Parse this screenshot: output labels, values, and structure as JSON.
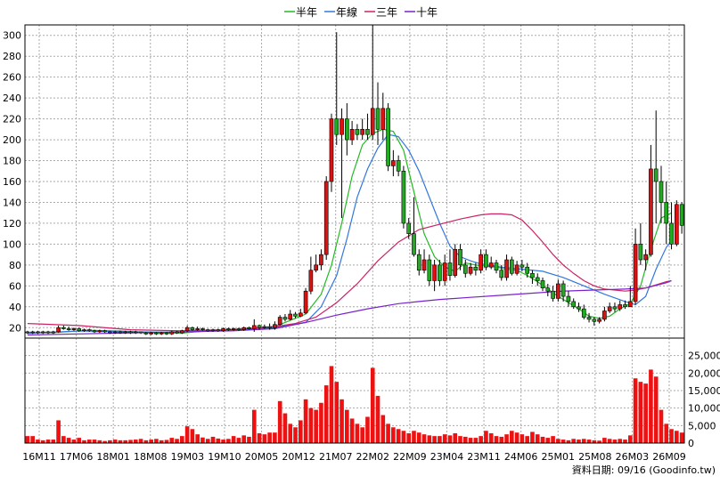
{
  "legend": [
    {
      "label": "半年",
      "color": "#22bb22"
    },
    {
      "label": "年線",
      "color": "#3377dd"
    },
    {
      "label": "三年",
      "color": "#cc2266"
    },
    {
      "label": "十年",
      "color": "#7722cc"
    }
  ],
  "source_label": "資料日期: 09/16  (Goodinfo.tw)",
  "colors": {
    "up": "#dd1111",
    "down": "#22aa22",
    "grid": "#aaaaaa",
    "volume": "#ee1111"
  },
  "chart_data": {
    "type": "candlestick_with_volume",
    "x_ticks": [
      "16M11",
      "17M06",
      "18M01",
      "18M08",
      "19M03",
      "19M10",
      "20M05",
      "20M12",
      "21M07",
      "22M02",
      "22M09",
      "23M04",
      "23M11",
      "24M06",
      "25M01",
      "25M08",
      "26M03",
      "26M09"
    ],
    "price_axis": {
      "ylim": [
        10,
        310
      ],
      "ticks": [
        20,
        40,
        60,
        80,
        100,
        120,
        140,
        160,
        180,
        200,
        220,
        240,
        260,
        280,
        300
      ]
    },
    "volume_axis": {
      "ylim": [
        0,
        30000
      ],
      "ticks": [
        0,
        5000,
        10000,
        15000,
        20000,
        25000
      ],
      "tick_labels": [
        "0",
        "5,000",
        "10,000",
        "15,000",
        "20,000",
        "25,000"
      ]
    },
    "candles": [
      [
        16,
        15,
        17,
        14
      ],
      [
        15,
        16,
        17,
        14
      ],
      [
        16,
        15,
        17,
        14
      ],
      [
        15,
        16,
        17,
        14
      ],
      [
        16,
        15,
        17,
        14
      ],
      [
        15,
        16,
        17,
        14
      ],
      [
        16,
        20,
        22,
        15
      ],
      [
        20,
        19,
        22,
        18
      ],
      [
        19,
        18,
        21,
        17
      ],
      [
        18,
        19,
        20,
        17
      ],
      [
        19,
        17,
        20,
        16
      ],
      [
        17,
        18,
        19,
        16
      ],
      [
        18,
        17,
        19,
        16
      ],
      [
        17,
        16,
        18,
        15
      ],
      [
        16,
        17,
        18,
        15
      ],
      [
        17,
        16,
        18,
        15
      ],
      [
        16,
        15,
        17,
        14
      ],
      [
        15,
        16,
        17,
        14
      ],
      [
        16,
        15,
        17,
        14
      ],
      [
        15,
        16,
        17,
        14
      ],
      [
        16,
        15,
        17,
        14
      ],
      [
        15,
        16,
        17,
        14
      ],
      [
        16,
        15,
        16,
        14
      ],
      [
        15,
        14,
        16,
        13
      ],
      [
        14,
        15,
        16,
        13
      ],
      [
        15,
        14,
        16,
        13
      ],
      [
        14,
        15,
        16,
        13
      ],
      [
        15,
        14,
        16,
        13
      ],
      [
        14,
        16,
        17,
        13
      ],
      [
        16,
        15,
        17,
        14
      ],
      [
        15,
        17,
        18,
        14
      ],
      [
        17,
        20,
        22,
        16
      ],
      [
        20,
        18,
        21,
        17
      ],
      [
        18,
        19,
        21,
        17
      ],
      [
        19,
        18,
        20,
        17
      ],
      [
        18,
        17,
        19,
        16
      ],
      [
        17,
        18,
        19,
        16
      ],
      [
        18,
        17,
        19,
        16
      ],
      [
        17,
        19,
        20,
        16
      ],
      [
        19,
        18,
        20,
        17
      ],
      [
        18,
        19,
        20,
        17
      ],
      [
        19,
        18,
        20,
        17
      ],
      [
        18,
        20,
        21,
        17
      ],
      [
        20,
        19,
        21,
        18
      ],
      [
        19,
        22,
        28,
        16
      ],
      [
        22,
        20,
        23,
        18
      ],
      [
        20,
        21,
        23,
        19
      ],
      [
        21,
        20,
        24,
        18
      ],
      [
        20,
        23,
        26,
        18
      ],
      [
        23,
        30,
        32,
        22
      ],
      [
        30,
        28,
        33,
        26
      ],
      [
        28,
        33,
        37,
        27
      ],
      [
        33,
        31,
        35,
        29
      ],
      [
        31,
        34,
        38,
        30
      ],
      [
        34,
        55,
        58,
        33
      ],
      [
        55,
        75,
        88,
        52
      ],
      [
        75,
        80,
        90,
        73
      ],
      [
        80,
        90,
        95,
        75
      ],
      [
        90,
        160,
        165,
        85
      ],
      [
        160,
        220,
        225,
        150
      ],
      [
        220,
        205,
        303,
        195
      ],
      [
        205,
        220,
        230,
        125
      ],
      [
        220,
        200,
        235,
        185
      ],
      [
        200,
        210,
        218,
        195
      ],
      [
        210,
        205,
        215,
        200
      ],
      [
        205,
        210,
        220,
        200
      ],
      [
        210,
        205,
        225,
        200
      ],
      [
        205,
        230,
        310,
        200
      ],
      [
        230,
        210,
        255,
        195
      ],
      [
        210,
        230,
        245,
        200
      ],
      [
        230,
        175,
        235,
        170
      ],
      [
        175,
        180,
        190,
        165
      ],
      [
        180,
        170,
        185,
        165
      ],
      [
        170,
        120,
        175,
        115
      ],
      [
        120,
        110,
        125,
        105
      ],
      [
        110,
        90,
        145,
        88
      ],
      [
        90,
        75,
        95,
        70
      ],
      [
        75,
        85,
        95,
        72
      ],
      [
        85,
        65,
        90,
        60
      ],
      [
        65,
        80,
        85,
        55
      ],
      [
        80,
        65,
        85,
        60
      ],
      [
        65,
        82,
        90,
        60
      ],
      [
        82,
        70,
        95,
        65
      ],
      [
        70,
        95,
        100,
        68
      ],
      [
        95,
        80,
        100,
        75
      ],
      [
        80,
        72,
        85,
        68
      ],
      [
        72,
        78,
        82,
        70
      ],
      [
        78,
        75,
        82,
        70
      ],
      [
        75,
        90,
        95,
        72
      ],
      [
        90,
        78,
        95,
        75
      ],
      [
        78,
        82,
        88,
        76
      ],
      [
        82,
        75,
        85,
        72
      ],
      [
        75,
        68,
        80,
        65
      ],
      [
        68,
        85,
        90,
        65
      ],
      [
        85,
        72,
        88,
        70
      ],
      [
        72,
        80,
        84,
        70
      ],
      [
        80,
        78,
        85,
        74
      ],
      [
        78,
        72,
        82,
        68
      ],
      [
        72,
        68,
        75,
        62
      ],
      [
        68,
        65,
        72,
        60
      ],
      [
        65,
        58,
        68,
        55
      ],
      [
        58,
        55,
        62,
        50
      ],
      [
        55,
        48,
        60,
        45
      ],
      [
        48,
        62,
        66,
        45
      ],
      [
        62,
        50,
        65,
        45
      ],
      [
        50,
        45,
        55,
        40
      ],
      [
        45,
        40,
        48,
        38
      ],
      [
        40,
        38,
        44,
        35
      ],
      [
        38,
        30,
        42,
        28
      ],
      [
        30,
        28,
        34,
        25
      ],
      [
        28,
        26,
        30,
        22
      ],
      [
        26,
        28,
        30,
        24
      ],
      [
        28,
        36,
        40,
        26
      ],
      [
        36,
        40,
        44,
        34
      ],
      [
        40,
        38,
        44,
        35
      ],
      [
        38,
        42,
        46,
        36
      ],
      [
        42,
        40,
        46,
        38
      ],
      [
        40,
        45,
        60,
        40
      ],
      [
        45,
        100,
        115,
        42
      ],
      [
        100,
        85,
        120,
        80
      ],
      [
        85,
        90,
        95,
        75
      ],
      [
        90,
        172,
        195,
        88
      ],
      [
        172,
        160,
        228,
        120
      ],
      [
        160,
        140,
        175,
        120
      ],
      [
        140,
        120,
        160,
        100
      ],
      [
        120,
        100,
        140,
        95
      ],
      [
        100,
        138,
        142,
        98
      ],
      [
        138,
        118,
        140,
        110
      ]
    ],
    "volumes": [
      2000,
      2000,
      1000,
      800,
      1000,
      1000,
      6500,
      2000,
      1500,
      1000,
      1500,
      800,
      1000,
      1000,
      800,
      600,
      800,
      1000,
      800,
      800,
      900,
      1000,
      1200,
      800,
      1000,
      1200,
      800,
      900,
      1500,
      1200,
      2000,
      4800,
      4000,
      2500,
      1600,
      1200,
      1800,
      1300,
      1000,
      1200,
      2000,
      1500,
      2200,
      1800,
      9500,
      2800,
      2500,
      3000,
      3000,
      12000,
      8500,
      5500,
      4500,
      6500,
      12500,
      10000,
      9500,
      11500,
      16500,
      22000,
      17500,
      12500,
      9500,
      7000,
      5500,
      4500,
      7500,
      21500,
      13500,
      8000,
      5500,
      4500,
      4000,
      3500,
      2800,
      3500,
      3000,
      2500,
      2200,
      2000,
      2000,
      2500,
      2200,
      2800,
      2000,
      1800,
      1500,
      1500,
      2000,
      3500,
      2800,
      2000,
      1800,
      2500,
      3500,
      3000,
      2500,
      2000,
      3200,
      2500,
      1800,
      1500,
      2000,
      1200,
      1000,
      800,
      1200,
      1000,
      1200,
      1000,
      800,
      700,
      1500,
      1200,
      1000,
      1200,
      1000,
      2200,
      18500,
      17500,
      17000,
      21000,
      19000,
      9500,
      5500,
      4000,
      3500,
      3000
    ],
    "ma_half_year": [
      [
        0,
        15
      ],
      [
        6,
        15.5
      ],
      [
        12,
        17.5
      ],
      [
        18,
        16.8
      ],
      [
        24,
        15.2
      ],
      [
        30,
        14.8
      ],
      [
        36,
        17.5
      ],
      [
        42,
        18.2
      ],
      [
        48,
        21
      ],
      [
        54,
        33
      ],
      [
        57,
        52
      ],
      [
        59,
        80
      ],
      [
        61,
        120
      ],
      [
        63,
        165
      ],
      [
        65,
        195
      ],
      [
        67,
        206
      ],
      [
        69,
        210
      ],
      [
        71,
        208
      ],
      [
        73,
        190
      ],
      [
        75,
        150
      ],
      [
        77,
        110
      ],
      [
        79,
        88
      ],
      [
        81,
        78
      ],
      [
        83,
        74
      ],
      [
        85,
        82
      ],
      [
        87,
        80
      ],
      [
        89,
        79
      ],
      [
        91,
        78
      ],
      [
        93,
        76
      ],
      [
        95,
        75
      ],
      [
        97,
        70
      ],
      [
        99,
        64
      ],
      [
        101,
        57
      ],
      [
        103,
        50
      ],
      [
        105,
        44
      ],
      [
        107,
        38
      ],
      [
        109,
        31
      ],
      [
        111,
        29
      ],
      [
        113,
        31
      ],
      [
        115,
        38
      ],
      [
        117,
        43
      ],
      [
        119,
        60
      ],
      [
        121,
        95
      ],
      [
        123,
        125
      ],
      [
        125,
        130
      ]
    ],
    "ma_year": [
      [
        0,
        14.5
      ],
      [
        10,
        16.8
      ],
      [
        20,
        16
      ],
      [
        30,
        15.5
      ],
      [
        40,
        17.8
      ],
      [
        48,
        20
      ],
      [
        54,
        25
      ],
      [
        57,
        40
      ],
      [
        60,
        70
      ],
      [
        62,
        105
      ],
      [
        64,
        145
      ],
      [
        66,
        172
      ],
      [
        68,
        192
      ],
      [
        70,
        205
      ],
      [
        72,
        203
      ],
      [
        74,
        190
      ],
      [
        76,
        170
      ],
      [
        78,
        145
      ],
      [
        80,
        120
      ],
      [
        82,
        98
      ],
      [
        84,
        88
      ],
      [
        86,
        84
      ],
      [
        88,
        81
      ],
      [
        92,
        78
      ],
      [
        96,
        76
      ],
      [
        100,
        74
      ],
      [
        104,
        68
      ],
      [
        108,
        60
      ],
      [
        112,
        52
      ],
      [
        116,
        45
      ],
      [
        118,
        42
      ],
      [
        120,
        50
      ],
      [
        122,
        76
      ],
      [
        124,
        97
      ],
      [
        125,
        103
      ]
    ],
    "ma_three_year": [
      [
        0,
        24
      ],
      [
        10,
        22
      ],
      [
        20,
        18
      ],
      [
        30,
        17
      ],
      [
        40,
        18
      ],
      [
        48,
        21
      ],
      [
        52,
        24
      ],
      [
        56,
        30
      ],
      [
        60,
        44
      ],
      [
        64,
        62
      ],
      [
        68,
        84
      ],
      [
        72,
        102
      ],
      [
        76,
        114
      ],
      [
        80,
        119
      ],
      [
        84,
        124
      ],
      [
        88,
        128
      ],
      [
        90,
        129
      ],
      [
        92,
        129
      ],
      [
        94,
        128
      ],
      [
        96,
        123
      ],
      [
        98,
        113
      ],
      [
        100,
        102
      ],
      [
        102,
        90
      ],
      [
        104,
        80
      ],
      [
        106,
        72
      ],
      [
        108,
        65
      ],
      [
        110,
        60
      ],
      [
        112,
        57
      ],
      [
        114,
        56
      ],
      [
        116,
        55
      ],
      [
        118,
        56
      ],
      [
        120,
        58
      ],
      [
        122,
        61
      ],
      [
        124,
        64
      ],
      [
        125,
        65
      ]
    ],
    "ma_ten_year": [
      [
        0,
        13
      ],
      [
        10,
        14
      ],
      [
        20,
        15
      ],
      [
        30,
        16
      ],
      [
        40,
        17
      ],
      [
        48,
        19
      ],
      [
        54,
        25
      ],
      [
        60,
        32
      ],
      [
        66,
        38
      ],
      [
        72,
        43
      ],
      [
        76,
        45
      ],
      [
        80,
        47
      ],
      [
        86,
        49
      ],
      [
        92,
        51
      ],
      [
        98,
        53
      ],
      [
        104,
        55
      ],
      [
        110,
        56
      ],
      [
        116,
        57
      ],
      [
        120,
        58
      ],
      [
        124,
        63
      ],
      [
        125,
        65
      ]
    ]
  }
}
